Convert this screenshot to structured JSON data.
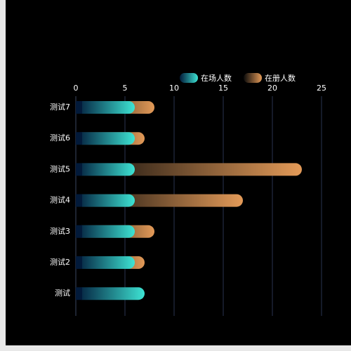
{
  "chart_data": {
    "type": "bar",
    "orientation": "horizontal",
    "title": "",
    "xlabel": "",
    "ylabel": "",
    "categories": [
      "测试",
      "测试2",
      "测试3",
      "测试4",
      "测试5",
      "测试6",
      "测试7"
    ],
    "series": [
      {
        "name": "在场人数",
        "values": [
          7,
          6,
          6,
          6,
          6,
          6,
          6
        ],
        "gradient": [
          "#021a3a",
          "#3de3d3"
        ]
      },
      {
        "name": "在册人数",
        "values": [
          0,
          7,
          8,
          17,
          23,
          7,
          8
        ],
        "gradient": [
          "#0a0a0a",
          "#e39a58"
        ]
      }
    ],
    "xlim": [
      0,
      25
    ],
    "xticks": [
      "0",
      "5",
      "10",
      "15",
      "20",
      "25"
    ],
    "axis_position": "top",
    "grid": "vertical",
    "legend_position": "top-right",
    "overlap": true,
    "colors": {
      "background": "#000000",
      "grid": "#2a3550",
      "axis": "#3a4660",
      "text": "#ffffff"
    }
  }
}
